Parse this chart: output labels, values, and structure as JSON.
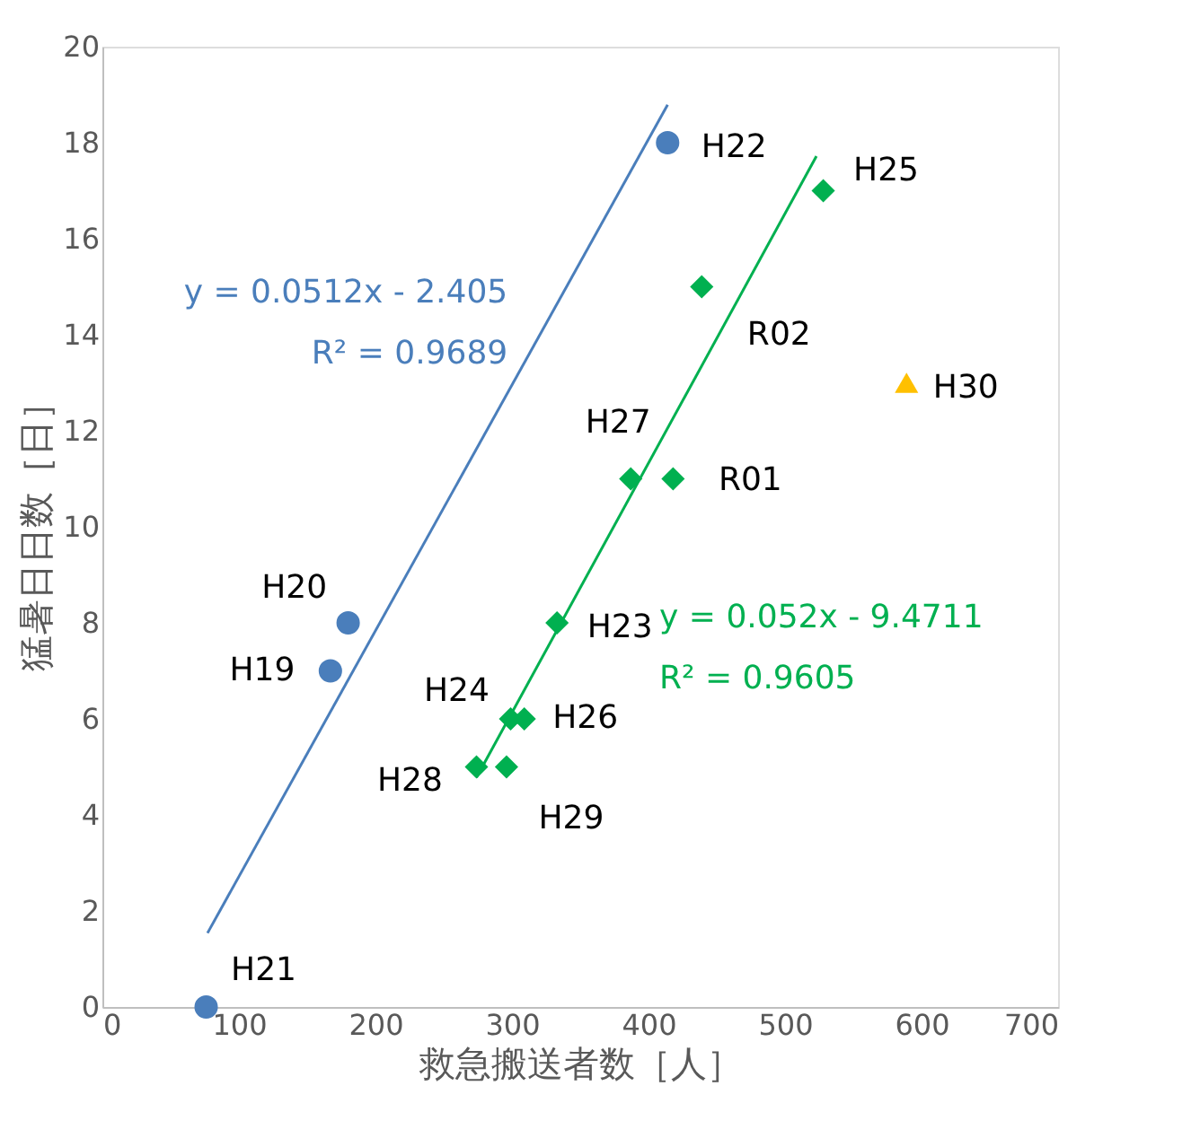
{
  "chart_data": {
    "type": "scatter",
    "xlabel": "救急搬送者数［人］",
    "ylabel": "猛暑日日数［日］",
    "xlim": [
      0,
      700
    ],
    "xticks": [
      0,
      100,
      200,
      300,
      400,
      500,
      600,
      700
    ],
    "ylim": [
      0,
      20
    ],
    "yticks": [
      0,
      2,
      4,
      6,
      8,
      10,
      12,
      14,
      16,
      18,
      20
    ],
    "grid": false,
    "legend": false,
    "series": [
      {
        "type": "scatter",
        "marker": "circle",
        "color": "#4a7ebb",
        "x": [
          76,
          167,
          180,
          414
        ],
        "values": [
          0,
          7,
          8,
          18
        ]
      },
      {
        "type": "scatter",
        "marker": "diamond",
        "color": "#00b050",
        "x": [
          274,
          296,
          299,
          309,
          333,
          387,
          418,
          439,
          528
        ],
        "values": [
          5,
          5,
          6,
          6,
          8,
          11,
          11,
          15,
          17
        ]
      },
      {
        "type": "scatter",
        "marker": "triangle",
        "color": "#ffc000",
        "x": [
          589
        ],
        "values": [
          13
        ]
      },
      {
        "type": "line",
        "name": "y = 0.0512x - 2.405\nR² = 0.9689",
        "color": "#4a7ebb",
        "x": [
          77,
          414
        ],
        "values": [
          1.54,
          18.79
        ]
      },
      {
        "type": "line",
        "name": "y = 0.052x - 9.4711\nR² = 0.9605",
        "color": "#00b050",
        "x": [
          274,
          523
        ],
        "values": [
          4.78,
          17.72
        ]
      }
    ],
    "annotations": [
      {
        "text": "H21",
        "x": 76,
        "y": 0
      },
      {
        "text": "H20",
        "x": 180,
        "y": 8
      },
      {
        "text": "H19",
        "x": 167,
        "y": 7
      },
      {
        "text": "H22",
        "x": 414,
        "y": 18
      },
      {
        "text": "H25",
        "x": 528,
        "y": 17
      },
      {
        "text": "R02",
        "x": 439,
        "y": 15
      },
      {
        "text": "H30",
        "x": 589,
        "y": 13
      },
      {
        "text": "H27",
        "x": 387,
        "y": 11
      },
      {
        "text": "R01",
        "x": 418,
        "y": 11
      },
      {
        "text": "H23",
        "x": 333,
        "y": 8
      },
      {
        "text": "H24",
        "x": 299,
        "y": 6
      },
      {
        "text": "H26",
        "x": 309,
        "y": 6
      },
      {
        "text": "H28",
        "x": 274,
        "y": 5
      },
      {
        "text": "H29",
        "x": 296,
        "y": 5
      }
    ]
  }
}
